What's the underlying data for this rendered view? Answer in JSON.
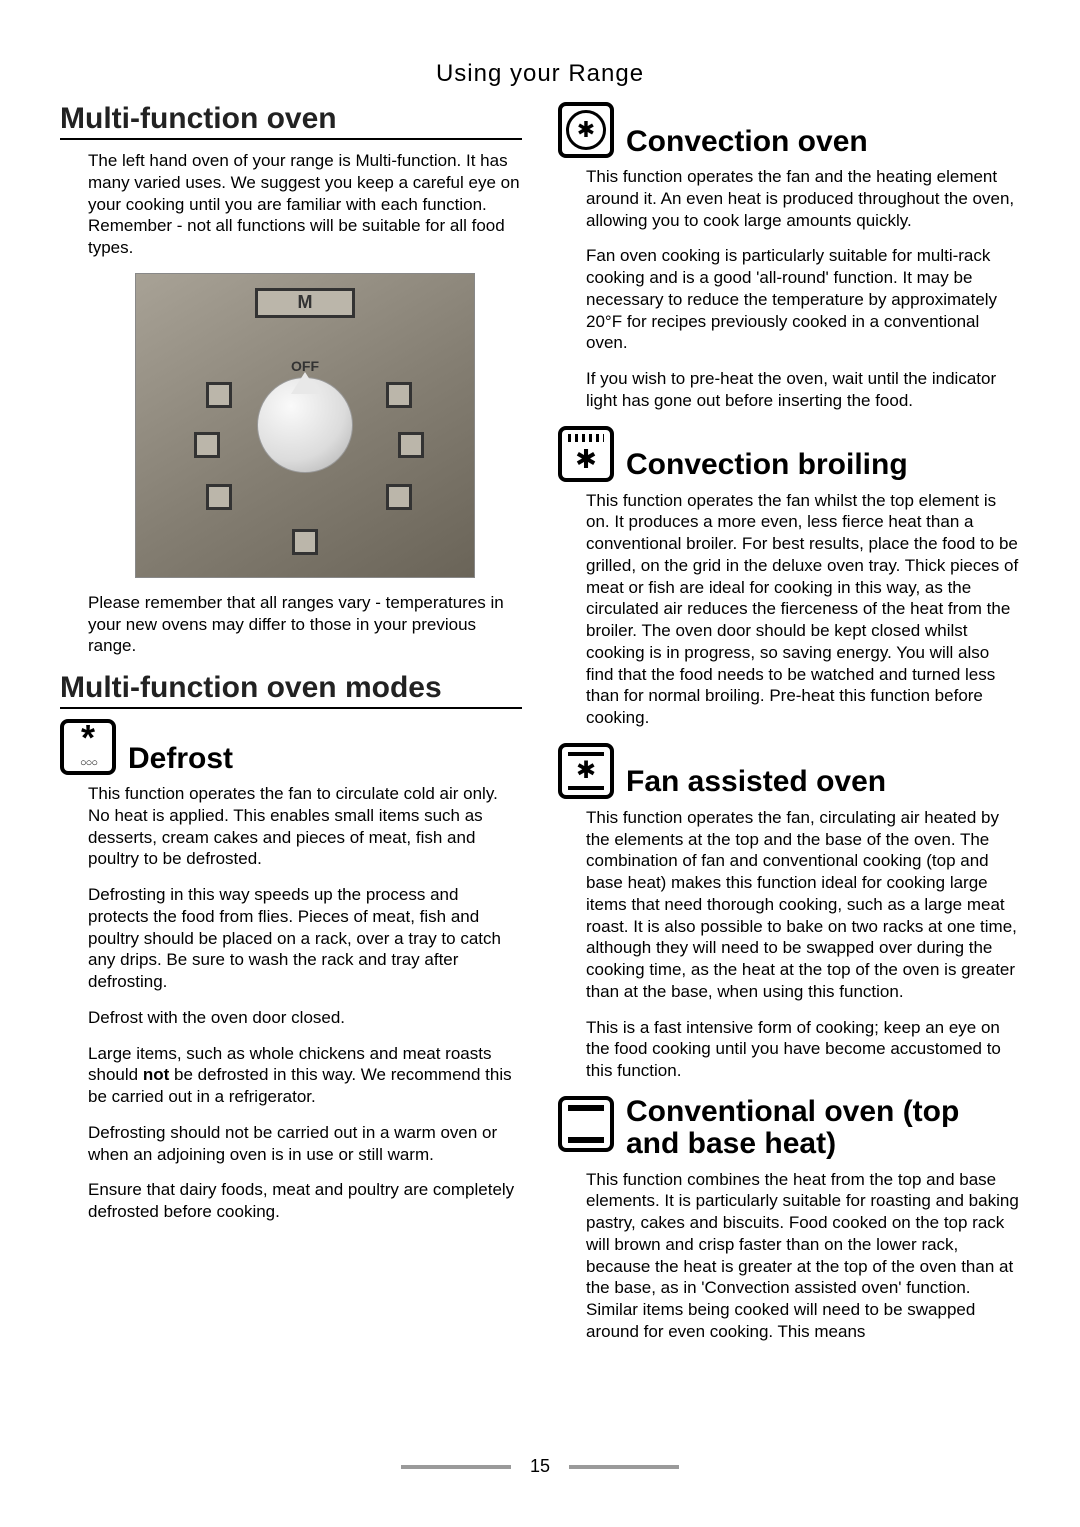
{
  "page_header": "Using your Range",
  "page_number": "15",
  "left": {
    "h1": "Multi-function oven",
    "intro": "The left hand oven of your range is Multi-function. It has many varied uses. We suggest you keep a careful eye on your cooking until you are familiar with each function. Remember - not all functions will be suitable for all food types.",
    "photo_label_top": "M",
    "photo_label_off": "OFF",
    "after_photo": "Please remember that all ranges vary - temperatures in your new ovens may differ to those in your previous range.",
    "h2": "Multi-function oven modes",
    "defrost": {
      "title": "Defrost",
      "p1": "This function operates the fan to circulate cold air only. No heat is applied. This enables small items such as desserts, cream cakes and pieces of meat, fish and poultry to be defrosted.",
      "p2": "Defrosting in this way speeds up the process and protects the food from flies. Pieces of meat, fish and poultry should be placed on a rack, over a tray to catch any drips. Be sure to wash the rack and tray after defrosting.",
      "p3": "Defrost with the oven door closed.",
      "p4a": "Large items, such as whole chickens and meat roasts should ",
      "p4b": "not",
      "p4c": " be defrosted in this way. We recommend this be carried out in a refrigerator.",
      "p5": "Defrosting should not be carried out in a warm oven or when an adjoining oven is in use or still warm.",
      "p6": "Ensure that dairy foods, meat and poultry are completely defrosted before cooking."
    }
  },
  "right": {
    "convection": {
      "title": "Convection oven",
      "p1": "This function operates the fan and the heating element around it. An even heat is produced throughout the oven, allowing you to cook large amounts quickly.",
      "p2": "Fan oven cooking is particularly suitable for multi-rack cooking and is a good 'all-round' function. It may be necessary to reduce the temperature by approximately 20°F for recipes previously cooked in a conventional oven.",
      "p3": "If you wish to pre-heat the oven, wait until the indicator light has gone out before inserting the food."
    },
    "convbroil": {
      "title": "Convection broiling",
      "p1": "This function operates the fan whilst the top element is on. It produces a more even, less fierce heat than a conventional broiler. For best results, place the food to be grilled, on the grid in the deluxe oven tray. Thick pieces of meat or fish are ideal for cooking in this way, as the circulated air reduces the fierceness of the heat from the broiler. The oven door should be kept closed whilst cooking is in progress, so saving energy. You will also find that the food needs to be watched and turned less than for normal broiling. Pre-heat this function before cooking."
    },
    "fanassist": {
      "title": "Fan assisted oven",
      "p1": "This function operates the fan, circulating air heated by the elements at the top and the base of the oven. The combination of fan and conventional cooking (top and base heat) makes this function ideal for cooking large items that need thorough cooking, such as a large meat roast. It is also possible to bake on two racks at one time, although they will need to be swapped over during the cooking time, as the heat at the top of the oven is greater than at the base, when using this function.",
      "p2": "This is a fast intensive form of cooking; keep an eye on the food cooking until you have become accustomed to this function."
    },
    "conventional": {
      "title": "Conventional oven (top and base heat)",
      "p1": "This function combines the heat from the top and base elements. It is particularly suitable for roasting and baking pastry, cakes and biscuits. Food cooked on the top rack will brown and crisp faster than on the lower rack, because the heat is greater at the top of the oven than at the base, as in 'Convection assisted oven' function. Similar items being cooked will need to be swapped around for even cooking. This means"
    }
  }
}
